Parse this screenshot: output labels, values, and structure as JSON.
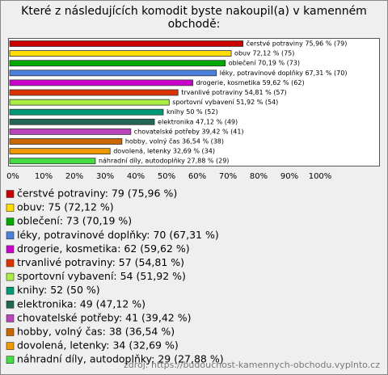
{
  "chart_data": {
    "type": "bar",
    "orientation": "horizontal",
    "title": "Které z následujících komodit byste nakoupil(a) v kamenném obchodě:",
    "categories": [
      "čerstvé potraviny",
      "obuv",
      "oblečení",
      "léky, potravinové doplňky",
      "drogerie, kosmetika",
      "trvanlivé potraviny",
      "sportovní vybavení",
      "knihy",
      "elektronika",
      "chovatelské potřeby",
      "hobby, volný čas",
      "dovolená, letenky",
      "náhradní díly, autodoplňky"
    ],
    "values": [
      75.96,
      72.12,
      70.19,
      67.31,
      59.62,
      54.81,
      51.92,
      50,
      47.12,
      39.42,
      36.54,
      32.69,
      27.88
    ],
    "value_labels": [
      "čerstvé potraviny 75,96 % (79)",
      "obuv 72,12 % (75)",
      "oblečení 70,19 % (73)",
      "léky, potravinové doplňky 67,31 % (70)",
      "drogerie, kosmetika 59,62 % (62)",
      "trvanlivé potraviny 54,81 % (57)",
      "sportovní vybavení 51,92 % (54)",
      "knihy 50 % (52)",
      "elektronika 47,12 % (49)",
      "chovatelské potřeby 39,42 % (41)",
      "hobby, volný čas 36,54 % (38)",
      "dovolená, letenky 32,69 % (34)",
      "náhradní díly, autodoplňky 27,88 % (29)"
    ],
    "legend": [
      "čerstvé potraviny: 79 (75,96 %)",
      "obuv: 75 (72,12 %)",
      "oblečení: 73 (70,19 %)",
      "léky, potravinové doplňky: 70 (67,31 %)",
      "drogerie, kosmetika: 62 (59,62 %)",
      "trvanlivé potraviny: 57 (54,81 %)",
      "sportovní vybavení: 54 (51,92 %)",
      "knihy: 52 (50 %)",
      "elektronika: 49 (47,12 %)",
      "chovatelské potřeby: 41 (39,42 %)",
      "hobby, volný čas: 38 (36,54 %)",
      "dovolená, letenky: 34 (32,69 %)",
      "náhradní díly, autodoplňky: 29 (27,88 %)"
    ],
    "colors": [
      "#cc0000",
      "#ffdd00",
      "#00aa00",
      "#4a7fdc",
      "#cc00cc",
      "#dd3300",
      "#aaee44",
      "#009977",
      "#226655",
      "#bb44bb",
      "#cc6600",
      "#ee9900",
      "#44dd44"
    ],
    "xlim": [
      0,
      120
    ],
    "xticks": [
      {
        "value": 0,
        "label": "0%"
      },
      {
        "value": 10,
        "label": "10%"
      },
      {
        "value": 20,
        "label": "20%"
      },
      {
        "value": 30,
        "label": "30%"
      },
      {
        "value": 40,
        "label": "40%"
      },
      {
        "value": 50,
        "label": "50%"
      },
      {
        "value": 60,
        "label": "60%"
      },
      {
        "value": 70,
        "label": "70%"
      },
      {
        "value": 80,
        "label": "80%"
      },
      {
        "value": 90,
        "label": "90%"
      },
      {
        "value": 100,
        "label": "100%"
      }
    ],
    "source": "zdroj: https://budoucnost-kamennych-obchodu.vyplnto.cz"
  }
}
